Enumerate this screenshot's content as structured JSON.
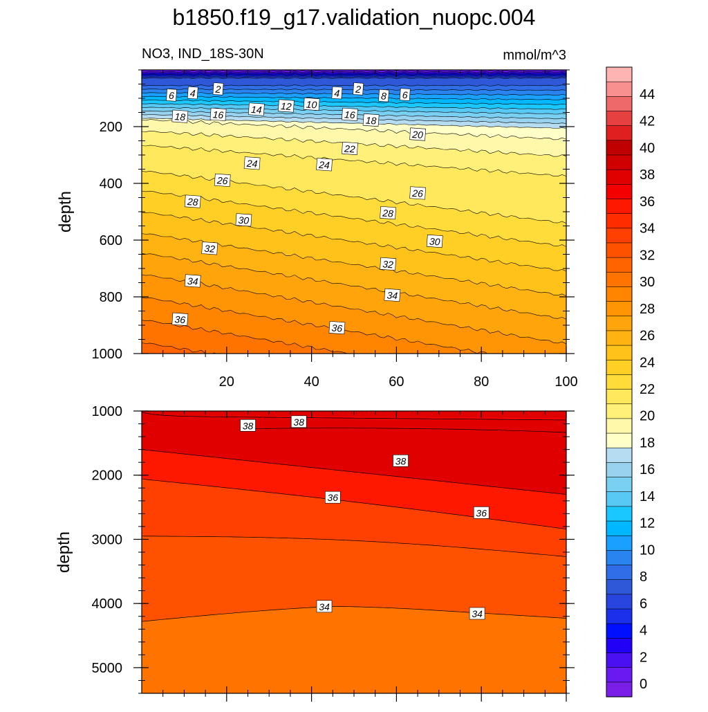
{
  "chart_data": {
    "type": "contour",
    "title": "b1850.f19_g17.validation_nuopc.004",
    "left_subtitle": "NO3, IND_18S-30N",
    "right_subtitle": "mmol/m^3",
    "colorbar": {
      "levels": [
        0,
        2,
        4,
        6,
        8,
        10,
        12,
        14,
        16,
        18,
        20,
        22,
        24,
        26,
        28,
        30,
        32,
        34,
        36,
        38,
        40,
        42,
        44
      ],
      "colors": [
        "#7a1ee8",
        "#6a1af0",
        "#4a10f2",
        "#2200f8",
        "#0010ff",
        "#1a30ea",
        "#2845e0",
        "#2f58d8",
        "#2f6ee6",
        "#2a84f0",
        "#1aa0ff",
        "#00b8ff",
        "#1ac8ff",
        "#58c8f5",
        "#7ad0f2",
        "#98d2ee",
        "#b5dcf0",
        "#ffffc8",
        "#fff7aa",
        "#fff07a",
        "#ffe85c",
        "#ffdc3a",
        "#ffcf26",
        "#ffc21a",
        "#ffb312",
        "#ffa40a",
        "#ff9404",
        "#ff8400",
        "#ff7400",
        "#ff6400",
        "#ff5200",
        "#ff4000",
        "#ff2c00",
        "#ff1800",
        "#f40000",
        "#e00000",
        "#d00000",
        "#c00000",
        "#e02020",
        "#e64040",
        "#ee6a6a",
        "#f89090",
        "#ffb4b4"
      ],
      "tick_labels": [
        "0",
        "2",
        "4",
        "6",
        "8",
        "10",
        "12",
        "14",
        "16",
        "18",
        "20",
        "22",
        "24",
        "26",
        "28",
        "30",
        "32",
        "34",
        "36",
        "38",
        "40",
        "42",
        "44"
      ]
    },
    "upper_panel": {
      "ylabel": "depth",
      "ylim": [
        1000,
        0
      ],
      "yticks": [
        200,
        400,
        600,
        800,
        1000
      ],
      "xlim": [
        0,
        100
      ],
      "xticks": [
        20,
        40,
        60,
        80,
        100
      ],
      "contour_labels": [
        {
          "text": "6",
          "x": 7,
          "y": 90
        },
        {
          "text": "4",
          "x": 12,
          "y": 82
        },
        {
          "text": "2",
          "x": 18,
          "y": 68
        },
        {
          "text": "4",
          "x": 46,
          "y": 82
        },
        {
          "text": "2",
          "x": 51,
          "y": 68
        },
        {
          "text": "8",
          "x": 57,
          "y": 92
        },
        {
          "text": "6",
          "x": 62,
          "y": 88
        },
        {
          "text": "18",
          "x": 9,
          "y": 165
        },
        {
          "text": "16",
          "x": 18,
          "y": 158
        },
        {
          "text": "14",
          "x": 27,
          "y": 140
        },
        {
          "text": "12",
          "x": 34,
          "y": 128
        },
        {
          "text": "10",
          "x": 40,
          "y": 122
        },
        {
          "text": "16",
          "x": 49,
          "y": 158
        },
        {
          "text": "18",
          "x": 54,
          "y": 178
        },
        {
          "text": "20",
          "x": 65,
          "y": 228
        },
        {
          "text": "22",
          "x": 49,
          "y": 278
        },
        {
          "text": "24",
          "x": 26,
          "y": 330
        },
        {
          "text": "24",
          "x": 43,
          "y": 335
        },
        {
          "text": "26",
          "x": 19,
          "y": 390
        },
        {
          "text": "26",
          "x": 65,
          "y": 435
        },
        {
          "text": "28",
          "x": 12,
          "y": 465
        },
        {
          "text": "28",
          "x": 58,
          "y": 505
        },
        {
          "text": "30",
          "x": 24,
          "y": 530
        },
        {
          "text": "30",
          "x": 69,
          "y": 605
        },
        {
          "text": "32",
          "x": 16,
          "y": 630
        },
        {
          "text": "32",
          "x": 58,
          "y": 685
        },
        {
          "text": "34",
          "x": 12,
          "y": 745
        },
        {
          "text": "34",
          "x": 59,
          "y": 795
        },
        {
          "text": "36",
          "x": 9,
          "y": 880
        },
        {
          "text": "36",
          "x": 46,
          "y": 910
        }
      ]
    },
    "lower_panel": {
      "ylabel": "depth",
      "ylim": [
        5400,
        1000
      ],
      "yticks": [
        1000,
        2000,
        3000,
        4000,
        5000
      ],
      "xlim": [
        0,
        100
      ],
      "contour_labels": [
        {
          "text": "38",
          "x": 25,
          "y": 1230
        },
        {
          "text": "38",
          "x": 37,
          "y": 1170
        },
        {
          "text": "38",
          "x": 61,
          "y": 1780
        },
        {
          "text": "36",
          "x": 45,
          "y": 2350
        },
        {
          "text": "36",
          "x": 80,
          "y": 2590
        },
        {
          "text": "34",
          "x": 43,
          "y": 4050
        },
        {
          "text": "34",
          "x": 79,
          "y": 4160
        }
      ]
    }
  }
}
